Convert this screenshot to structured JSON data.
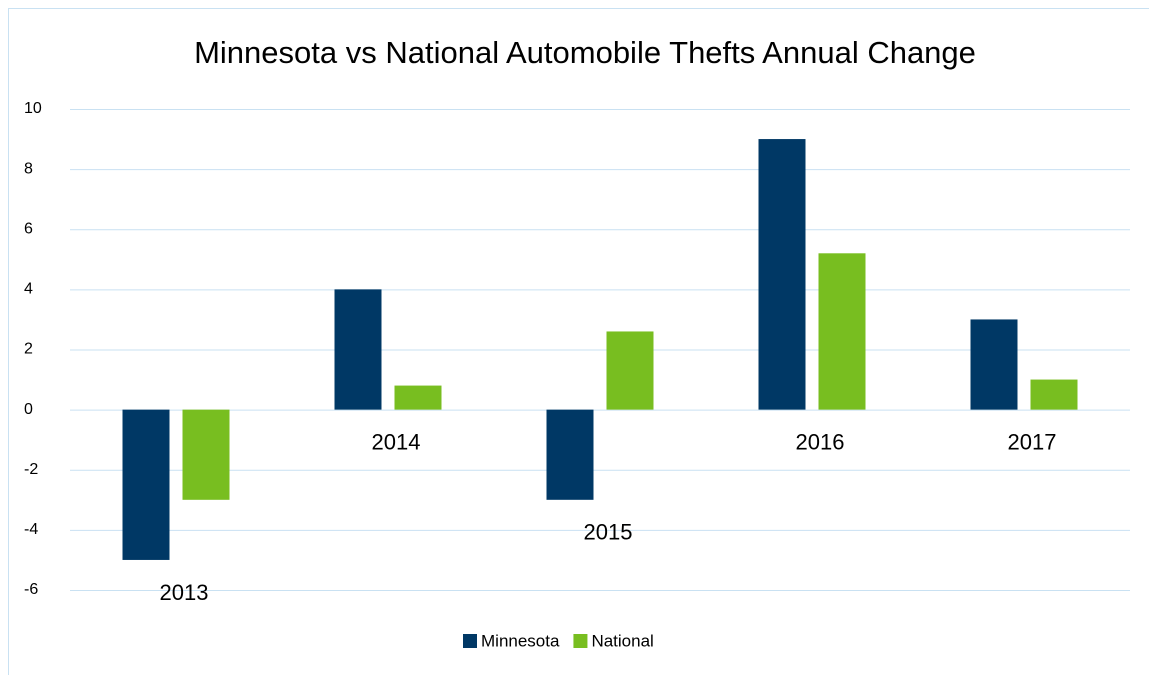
{
  "chart_data": {
    "type": "bar",
    "title": "Minnesota vs National Automobile Thefts Annual Change",
    "categories": [
      "2013",
      "2014",
      "2015",
      "2016",
      "2017"
    ],
    "series": [
      {
        "name": "Minnesota",
        "color": "#003865",
        "values": [
          -5,
          4,
          -3,
          9,
          3
        ]
      },
      {
        "name": "National",
        "color": "#78be20",
        "values": [
          -3,
          0.8,
          2.6,
          5.2,
          1.0
        ]
      }
    ],
    "ylim": [
      -6,
      10
    ],
    "yticks": [
      -6,
      -4,
      -2,
      0,
      2,
      4,
      6,
      8,
      10
    ],
    "grid": true,
    "legend": "bottom"
  }
}
